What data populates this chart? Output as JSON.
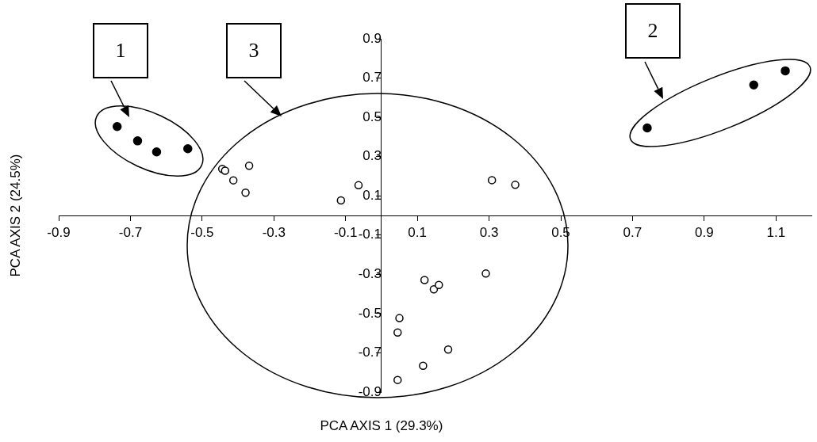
{
  "chart_data": {
    "type": "scatter",
    "xlabel": "PCA AXIS 1 (29.3%)",
    "ylabel": "PCA AXIS 2 (24.5%)",
    "xlim": [
      -0.9,
      1.2
    ],
    "xticks": [
      -0.9,
      -0.7,
      -0.5,
      -0.3,
      -0.1,
      0.1,
      0.3,
      0.5,
      0.7,
      0.9,
      1.1
    ],
    "ylim": [
      -0.9,
      0.9
    ],
    "yticks": [
      -0.9,
      -0.7,
      -0.5,
      -0.3,
      -0.1,
      0.1,
      0.3,
      0.5,
      0.7,
      0.9
    ],
    "marker": "circle",
    "grid": false,
    "legend": false,
    "series": [
      {
        "color": "#000000",
        "x": [
          -0.737,
          -0.68,
          -0.627,
          -0.54,
          0.741,
          1.038,
          1.126
        ],
        "values": [
          0.453,
          0.38,
          0.324,
          0.34,
          0.446,
          0.665,
          0.737
        ]
      },
      {
        "color": "#000000",
        "x": [
          -0.444,
          -0.436,
          -0.413,
          -0.369,
          -0.379,
          -0.064,
          -0.113,
          0.308,
          0.373,
          0.12,
          0.146,
          0.16,
          0.291,
          0.05,
          0.045,
          0.186,
          0.116,
          0.045
        ],
        "values": [
          0.237,
          0.228,
          0.179,
          0.253,
          0.116,
          0.154,
          0.077,
          0.18,
          0.156,
          -0.329,
          -0.376,
          -0.354,
          -0.296,
          -0.523,
          -0.596,
          -0.683,
          -0.766,
          -0.838
        ]
      }
    ],
    "annotations": [
      "1",
      "3",
      "2"
    ]
  }
}
